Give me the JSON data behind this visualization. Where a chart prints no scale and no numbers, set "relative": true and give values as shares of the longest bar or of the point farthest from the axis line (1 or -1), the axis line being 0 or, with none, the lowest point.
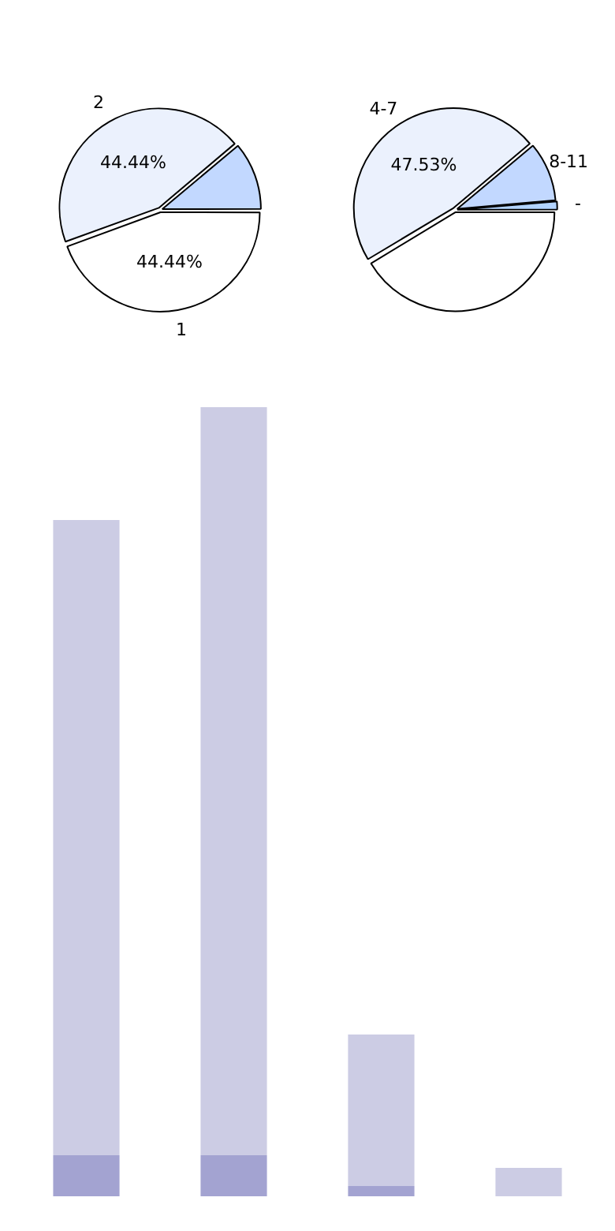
{
  "chart_data": [
    {
      "type": "pie",
      "categories": [
        "1",
        "2",
        null
      ],
      "values": [
        44.44,
        44.44,
        11.12
      ],
      "colors": [
        "#ffffff",
        "#ebf1fd",
        "#c2d8ff"
      ],
      "value_labels": [
        "44.44%",
        "44.44%",
        null
      ],
      "legend": false
    },
    {
      "type": "pie",
      "categories": [
        null,
        "4-7",
        "8-11",
        "-"
      ],
      "values": [
        41.37,
        47.53,
        9.7,
        1.4
      ],
      "colors": [
        "#ffffff",
        "#ebf1fd",
        "#c2d8ff",
        "#b3d4ff"
      ],
      "value_labels": [
        null,
        "47.53%",
        null,
        null
      ],
      "legend": false
    },
    {
      "type": "bar",
      "relative": true,
      "stacked": true,
      "categories": [
        null,
        null,
        null,
        null
      ],
      "legend": false,
      "series": [
        {
          "color": "#a3a3d1",
          "values": [
            0.052,
            0.052,
            0.013,
            0
          ]
        },
        {
          "color": "#ccccE4",
          "values": [
            0.805,
            0.948,
            0.192,
            0.036
          ]
        }
      ]
    }
  ]
}
